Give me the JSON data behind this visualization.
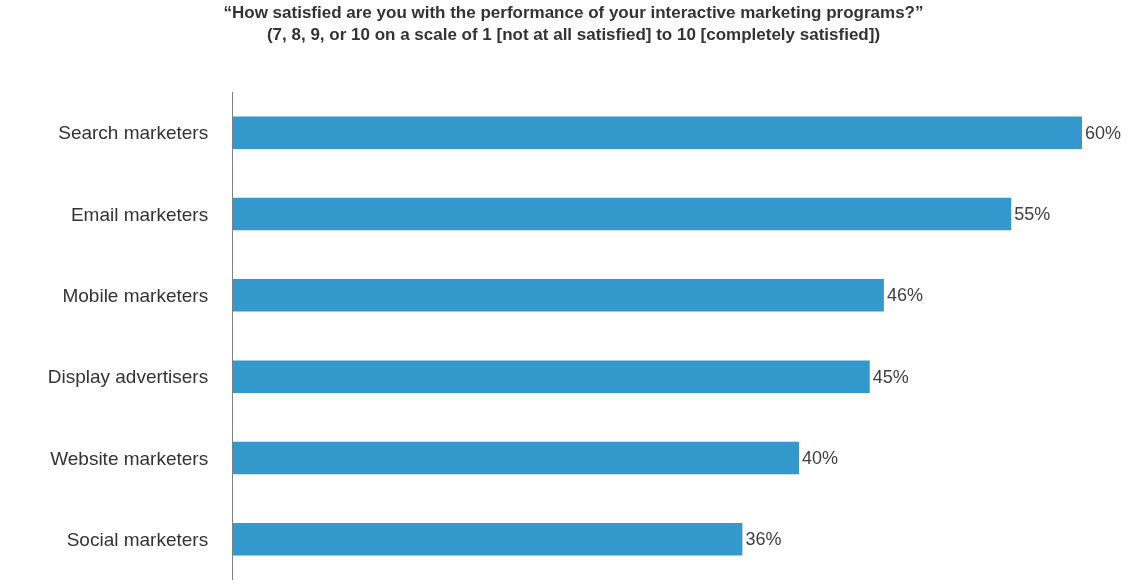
{
  "chart_data": {
    "type": "bar",
    "orientation": "horizontal",
    "title": "“How satisfied are you with the performance of your interactive marketing programs?”",
    "subtitle": "(7, 8, 9, or 10 on a scale of 1 [not at all satisfied] to 10 [completely satisfied])",
    "categories": [
      "Search marketers",
      "Email marketers",
      "Mobile marketers",
      "Display advertisers",
      "Website marketers",
      "Social marketers"
    ],
    "values": [
      60,
      55,
      46,
      45,
      40,
      36
    ],
    "value_labels": [
      "60%",
      "55%",
      "46%",
      "45%",
      "40%",
      "36%"
    ],
    "color": "#3399cc",
    "xlim": [
      0,
      60
    ]
  }
}
